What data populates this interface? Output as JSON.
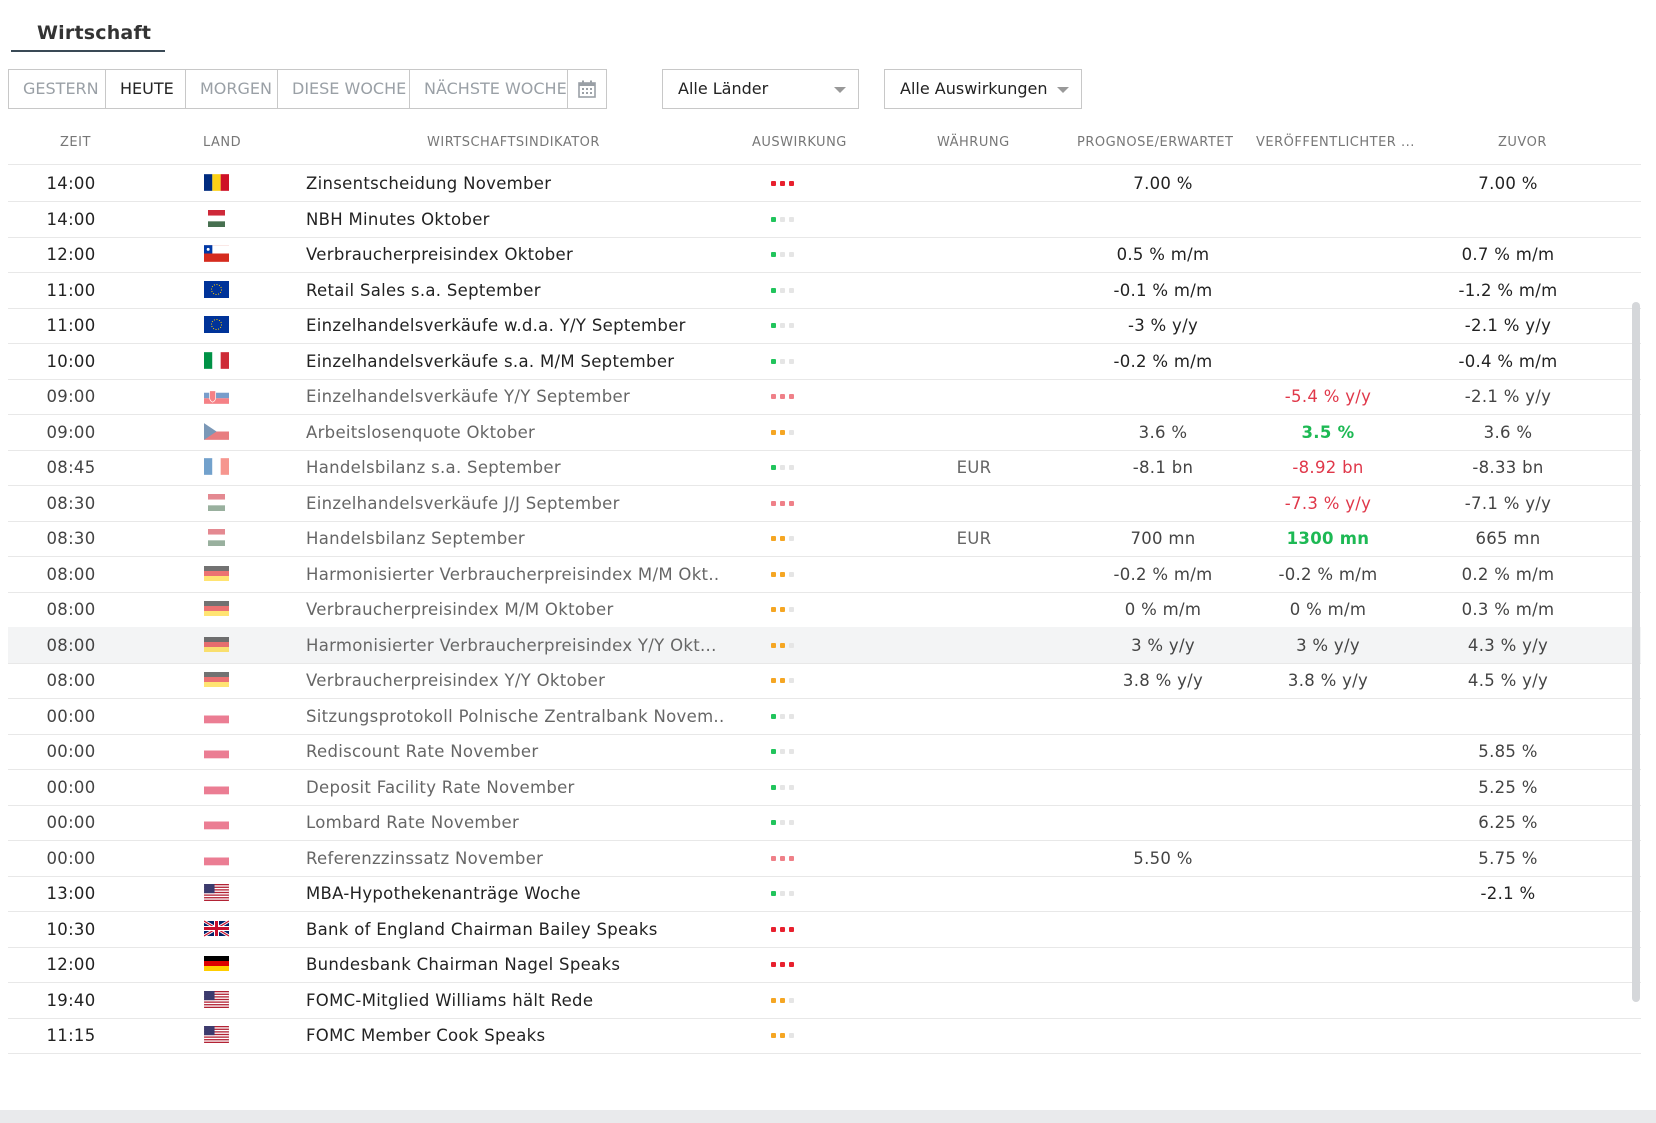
{
  "header": {
    "title": "Wirtschaft"
  },
  "filters": {
    "tabs": [
      {
        "label": "GESTERN",
        "active": false
      },
      {
        "label": "HEUTE",
        "active": true
      },
      {
        "label": "MORGEN",
        "active": false
      },
      {
        "label": "DIESE WOCHE",
        "active": false
      },
      {
        "label": "NÄCHSTE WOCHE",
        "active": false
      }
    ],
    "calendar_icon": "calendar-icon",
    "country_select": "Alle Länder",
    "impact_select": "Alle Auswirkungen"
  },
  "table": {
    "columns": {
      "time": "ZEIT",
      "country": "LAND",
      "indicator": "WIRTSCHAFTSINDIKATOR",
      "impact": "AUSWIRKUNG",
      "currency": "WÄHRUNG",
      "forecast": "PROGNOSE/ERWARTET",
      "published": "VERÖFFENTLICHTER ...",
      "previous": "ZUVOR"
    },
    "rows": [
      {
        "time": "14:00",
        "country": "romania",
        "indicator": "Zinsentscheidung November",
        "impact": "high",
        "currency": "",
        "forecast": "7.00 %",
        "published": "",
        "published_trend": "",
        "previous": "7.00 %",
        "dim": false,
        "highlight": false
      },
      {
        "time": "14:00",
        "country": "hungary",
        "indicator": "NBH Minutes Oktober",
        "impact": "low",
        "currency": "",
        "forecast": "",
        "published": "",
        "published_trend": "",
        "previous": "",
        "dim": false,
        "highlight": false
      },
      {
        "time": "12:00",
        "country": "chile",
        "indicator": "Verbraucherpreisindex Oktober",
        "impact": "low",
        "currency": "",
        "forecast": "0.5 % m/m",
        "published": "",
        "published_trend": "",
        "previous": "0.7 % m/m",
        "dim": false,
        "highlight": false
      },
      {
        "time": "11:00",
        "country": "eu",
        "indicator": "Retail Sales s.a. September",
        "impact": "low",
        "currency": "",
        "forecast": "-0.1 % m/m",
        "published": "",
        "published_trend": "",
        "previous": "-1.2 % m/m",
        "dim": false,
        "highlight": false
      },
      {
        "time": "11:00",
        "country": "eu",
        "indicator": "Einzelhandelsverkäufe w.d.a. Y/Y September",
        "impact": "low",
        "currency": "",
        "forecast": "-3 % y/y",
        "published": "",
        "published_trend": "",
        "previous": "-2.1 % y/y",
        "dim": false,
        "highlight": false
      },
      {
        "time": "10:00",
        "country": "italy",
        "indicator": "Einzelhandelsverkäufe s.a. M/M September",
        "impact": "low",
        "currency": "",
        "forecast": "-0.2 % m/m",
        "published": "",
        "published_trend": "",
        "previous": "-0.4 % m/m",
        "dim": false,
        "highlight": false
      },
      {
        "time": "09:00",
        "country": "slovakia",
        "indicator": "Einzelhandelsverkäufe Y/Y September",
        "impact": "high",
        "currency": "",
        "forecast": "",
        "published": "-5.4 % y/y",
        "published_trend": "neg",
        "previous": "-2.1 % y/y",
        "dim": true,
        "highlight": false
      },
      {
        "time": "09:00",
        "country": "czech",
        "indicator": "Arbeitslosenquote Oktober",
        "impact": "medium",
        "currency": "",
        "forecast": "3.6 %",
        "published": "3.5 %",
        "published_trend": "pos",
        "previous": "3.6 %",
        "dim": true,
        "highlight": false
      },
      {
        "time": "08:45",
        "country": "france",
        "indicator": "Handelsbilanz s.a. September",
        "impact": "low",
        "currency": "EUR",
        "forecast": "-8.1 bn",
        "published": "-8.92 bn",
        "published_trend": "neg",
        "previous": "-8.33 bn",
        "dim": true,
        "highlight": false
      },
      {
        "time": "08:30",
        "country": "hungary",
        "indicator": "Einzelhandelsverkäufe J/J September",
        "impact": "high",
        "currency": "",
        "forecast": "",
        "published": "-7.3 % y/y",
        "published_trend": "neg",
        "previous": "-7.1 % y/y",
        "dim": true,
        "highlight": false
      },
      {
        "time": "08:30",
        "country": "hungary",
        "indicator": "Handelsbilanz September",
        "impact": "medium",
        "currency": "EUR",
        "forecast": "700 mn",
        "published": "1300 mn",
        "published_trend": "pos",
        "previous": "665 mn",
        "dim": true,
        "highlight": false
      },
      {
        "time": "08:00",
        "country": "germany",
        "indicator": "Harmonisierter Verbraucherpreisindex M/M Okt..",
        "impact": "medium",
        "currency": "",
        "forecast": "-0.2 % m/m",
        "published": "-0.2 % m/m",
        "published_trend": "",
        "previous": "0.2 % m/m",
        "dim": true,
        "highlight": false
      },
      {
        "time": "08:00",
        "country": "germany",
        "indicator": "Verbraucherpreisindex M/M Oktober",
        "impact": "medium",
        "currency": "",
        "forecast": "0 % m/m",
        "published": "0 % m/m",
        "published_trend": "",
        "previous": "0.3 % m/m",
        "dim": true,
        "highlight": false
      },
      {
        "time": "08:00",
        "country": "germany",
        "indicator": "Harmonisierter Verbraucherpreisindex Y/Y Okt...",
        "impact": "medium",
        "currency": "",
        "forecast": "3 % y/y",
        "published": "3 % y/y",
        "published_trend": "",
        "previous": "4.3 % y/y",
        "dim": true,
        "highlight": true
      },
      {
        "time": "08:00",
        "country": "germany",
        "indicator": "Verbraucherpreisindex Y/Y Oktober",
        "impact": "medium",
        "currency": "",
        "forecast": "3.8 % y/y",
        "published": "3.8 % y/y",
        "published_trend": "",
        "previous": "4.5 % y/y",
        "dim": true,
        "highlight": false
      },
      {
        "time": "00:00",
        "country": "poland",
        "indicator": "Sitzungsprotokoll Polnische Zentralbank Novem..",
        "impact": "low",
        "currency": "",
        "forecast": "",
        "published": "",
        "published_trend": "",
        "previous": "",
        "dim": true,
        "highlight": false
      },
      {
        "time": "00:00",
        "country": "poland",
        "indicator": "Rediscount Rate November",
        "impact": "low",
        "currency": "",
        "forecast": "",
        "published": "",
        "published_trend": "",
        "previous": "5.85 %",
        "dim": true,
        "highlight": false
      },
      {
        "time": "00:00",
        "country": "poland",
        "indicator": "Deposit Facility Rate November",
        "impact": "low",
        "currency": "",
        "forecast": "",
        "published": "",
        "published_trend": "",
        "previous": "5.25 %",
        "dim": true,
        "highlight": false
      },
      {
        "time": "00:00",
        "country": "poland",
        "indicator": "Lombard Rate November",
        "impact": "low",
        "currency": "",
        "forecast": "",
        "published": "",
        "published_trend": "",
        "previous": "6.25 %",
        "dim": true,
        "highlight": false
      },
      {
        "time": "00:00",
        "country": "poland",
        "indicator": "Referenzzinssatz November",
        "impact": "high",
        "currency": "",
        "forecast": "5.50 %",
        "published": "",
        "published_trend": "",
        "previous": "5.75 %",
        "dim": true,
        "highlight": false
      },
      {
        "time": "13:00",
        "country": "usa",
        "indicator": "MBA-Hypothekenanträge Woche",
        "impact": "low",
        "currency": "",
        "forecast": "",
        "published": "",
        "published_trend": "",
        "previous": "-2.1 %",
        "dim": false,
        "highlight": false
      },
      {
        "time": "10:30",
        "country": "uk",
        "indicator": "Bank of England Chairman Bailey Speaks",
        "impact": "high",
        "currency": "",
        "forecast": "",
        "published": "",
        "published_trend": "",
        "previous": "",
        "dim": false,
        "highlight": false
      },
      {
        "time": "12:00",
        "country": "germany",
        "indicator": "Bundesbank Chairman Nagel Speaks",
        "impact": "high",
        "currency": "",
        "forecast": "",
        "published": "",
        "published_trend": "",
        "previous": "",
        "dim": false,
        "highlight": false
      },
      {
        "time": "19:40",
        "country": "usa",
        "indicator": "FOMC-Mitglied Williams hält Rede",
        "impact": "medium",
        "currency": "",
        "forecast": "",
        "published": "",
        "published_trend": "",
        "previous": "",
        "dim": false,
        "highlight": false
      },
      {
        "time": "11:15",
        "country": "usa",
        "indicator": "FOMC Member Cook Speaks",
        "impact": "medium",
        "currency": "",
        "forecast": "",
        "published": "",
        "published_trend": "",
        "previous": "",
        "dim": false,
        "highlight": false
      }
    ]
  }
}
